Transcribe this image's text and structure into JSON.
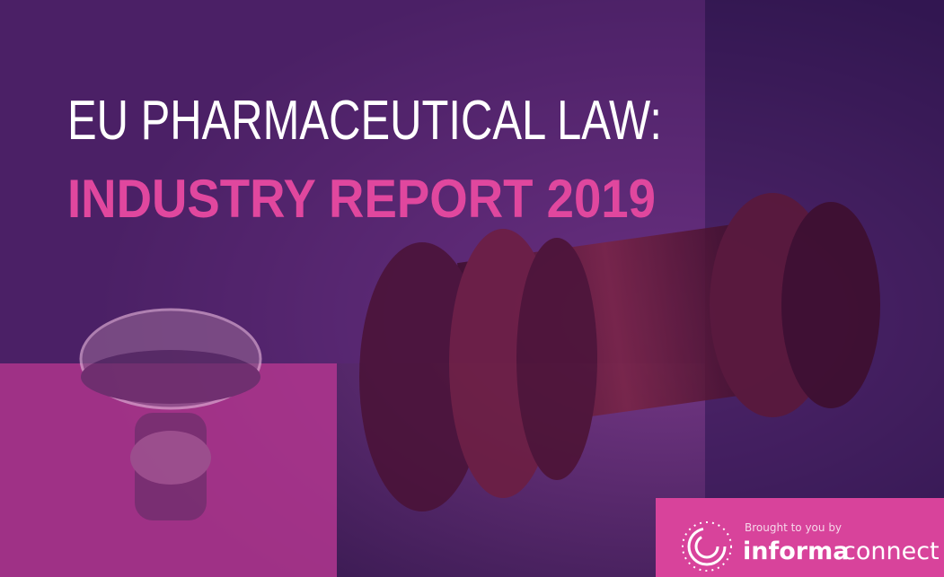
{
  "cover": {
    "title_line1": "EU PHARMACEUTICAL LAW:",
    "title_line2": "INDUSTRY REPORT 2019"
  },
  "sponsor": {
    "intro": "Brought to you by",
    "brand": "informa",
    "product": "connect"
  }
}
